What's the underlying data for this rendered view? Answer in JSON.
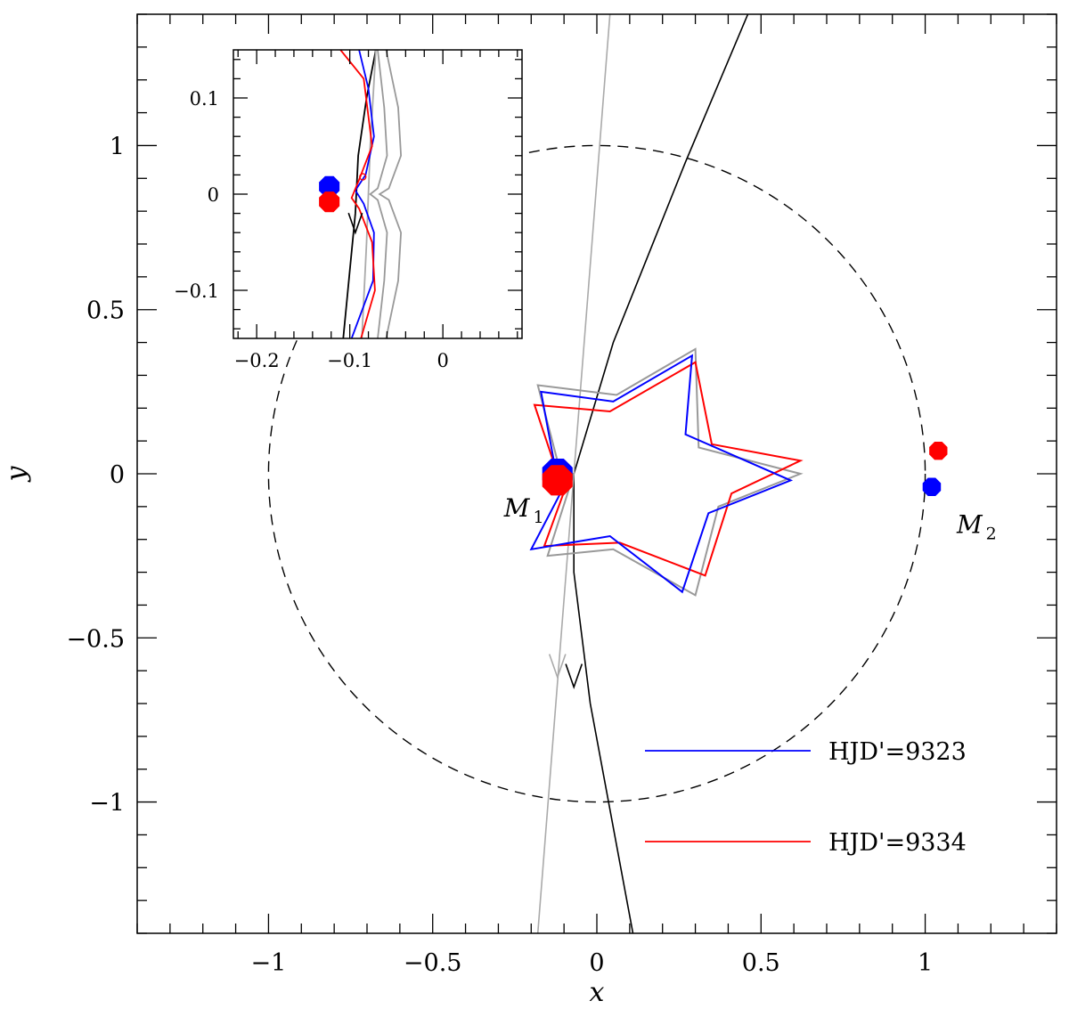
{
  "chart_data": {
    "type": "line",
    "title": "",
    "xlabel": "x",
    "ylabel": "y",
    "xlim": [
      -1.4,
      1.4
    ],
    "ylim": [
      -1.4,
      1.4
    ],
    "xticks": [
      -1,
      -0.5,
      0,
      0.5,
      1
    ],
    "yticks": [
      -1,
      -0.5,
      0,
      0.5,
      1
    ],
    "xtick_labels": [
      "−1",
      "−0.5",
      "0",
      "0.5",
      "1"
    ],
    "ytick_labels": [
      "−1",
      "−0.5",
      "0",
      "0.5",
      "1"
    ],
    "grid": false,
    "colors": {
      "epoch1": "#0000ff",
      "epoch2": "#ff0000",
      "model_caustic": "#999999",
      "einstein_ring": "#000000",
      "trajectory": "#000000",
      "trajectory_alt": "#aaaaaa"
    },
    "einstein_ring": {
      "center": [
        0,
        0
      ],
      "radius": 1,
      "style": "dashed"
    },
    "caustics": [
      {
        "name": "HJD'=9323",
        "color": "#0000ff",
        "points": [
          [
            -0.12,
            -0.02
          ],
          [
            -0.17,
            0.25
          ],
          [
            0.05,
            0.22
          ],
          [
            0.29,
            0.36
          ],
          [
            0.27,
            0.12
          ],
          [
            0.59,
            -0.02
          ],
          [
            0.34,
            -0.12
          ],
          [
            0.26,
            -0.36
          ],
          [
            0.04,
            -0.19
          ],
          [
            -0.2,
            -0.23
          ],
          [
            -0.08,
            0.0
          ]
        ]
      },
      {
        "name": "HJD'=9334",
        "color": "#ff0000",
        "points": [
          [
            -0.12,
            0.0
          ],
          [
            -0.19,
            0.21
          ],
          [
            0.04,
            0.19
          ],
          [
            0.3,
            0.34
          ],
          [
            0.35,
            0.09
          ],
          [
            0.62,
            0.04
          ],
          [
            0.41,
            -0.06
          ],
          [
            0.33,
            -0.31
          ],
          [
            0.07,
            -0.21
          ],
          [
            -0.16,
            -0.22
          ],
          [
            -0.08,
            0.0
          ]
        ]
      },
      {
        "name": "",
        "color": "#999999",
        "points": [
          [
            -0.11,
            0.0
          ],
          [
            -0.18,
            0.27
          ],
          [
            0.06,
            0.24
          ],
          [
            0.3,
            0.38
          ],
          [
            0.31,
            0.08
          ],
          [
            0.62,
            0.0
          ],
          [
            0.37,
            -0.1
          ],
          [
            0.3,
            -0.37
          ],
          [
            0.05,
            -0.23
          ],
          [
            -0.15,
            -0.25
          ],
          [
            -0.07,
            0.0
          ]
        ]
      }
    ],
    "trajectories": [
      {
        "color": "#000000",
        "points": [
          [
            0.11,
            -1.4
          ],
          [
            -0.02,
            -0.7
          ],
          [
            -0.07,
            -0.3
          ],
          [
            -0.07,
            0.0
          ],
          [
            0.05,
            0.4
          ],
          [
            0.27,
            0.95
          ],
          [
            0.46,
            1.4
          ]
        ],
        "arrow_at": [
          -0.07,
          -0.65
        ]
      },
      {
        "color": "#aaaaaa",
        "points": [
          [
            -0.18,
            -1.4
          ],
          [
            0.04,
            1.4
          ]
        ],
        "arrow_at": [
          -0.12,
          -0.62
        ]
      }
    ],
    "masses": [
      {
        "label": "M",
        "subscript": "1",
        "epoch": "HJD'=9323",
        "x": -0.12,
        "y": 0.0,
        "radius": 0.05,
        "color": "#0000ff"
      },
      {
        "label": "M",
        "subscript": "1",
        "epoch": "HJD'=9334",
        "x": -0.12,
        "y": -0.02,
        "radius": 0.05,
        "color": "#ff0000"
      },
      {
        "label": "M",
        "subscript": "2",
        "epoch": "HJD'=9323",
        "x": 1.02,
        "y": -0.04,
        "radius": 0.03,
        "color": "#0000ff"
      },
      {
        "label": "M",
        "subscript": "2",
        "epoch": "HJD'=9334",
        "x": 1.04,
        "y": 0.07,
        "radius": 0.03,
        "color": "#ff0000"
      }
    ],
    "legend": {
      "placement": "bottom-right",
      "entries": [
        {
          "label": "HJD'=9323",
          "color": "#0000ff"
        },
        {
          "label": "HJD'=9334",
          "color": "#ff0000"
        }
      ]
    },
    "inset": {
      "xlim": [
        -0.225,
        0.085
      ],
      "ylim": [
        -0.15,
        0.15
      ],
      "xticks": [
        -0.2,
        -0.1,
        0
      ],
      "yticks": [
        -0.1,
        0,
        0.1
      ],
      "xtick_labels": [
        "−0.2",
        "−0.1",
        "0"
      ],
      "ytick_labels": [
        "−0.1",
        "0",
        "0.1"
      ],
      "masses": [
        {
          "x": -0.122,
          "y": 0.008,
          "radius": 0.012,
          "color": "#0000ff"
        },
        {
          "x": -0.122,
          "y": -0.008,
          "radius": 0.012,
          "color": "#ff0000"
        }
      ],
      "source_marker": {
        "x": -0.086,
        "y": 0.018,
        "color": "#ff0000"
      },
      "arrow_at": [
        -0.094,
        -0.04
      ]
    }
  }
}
